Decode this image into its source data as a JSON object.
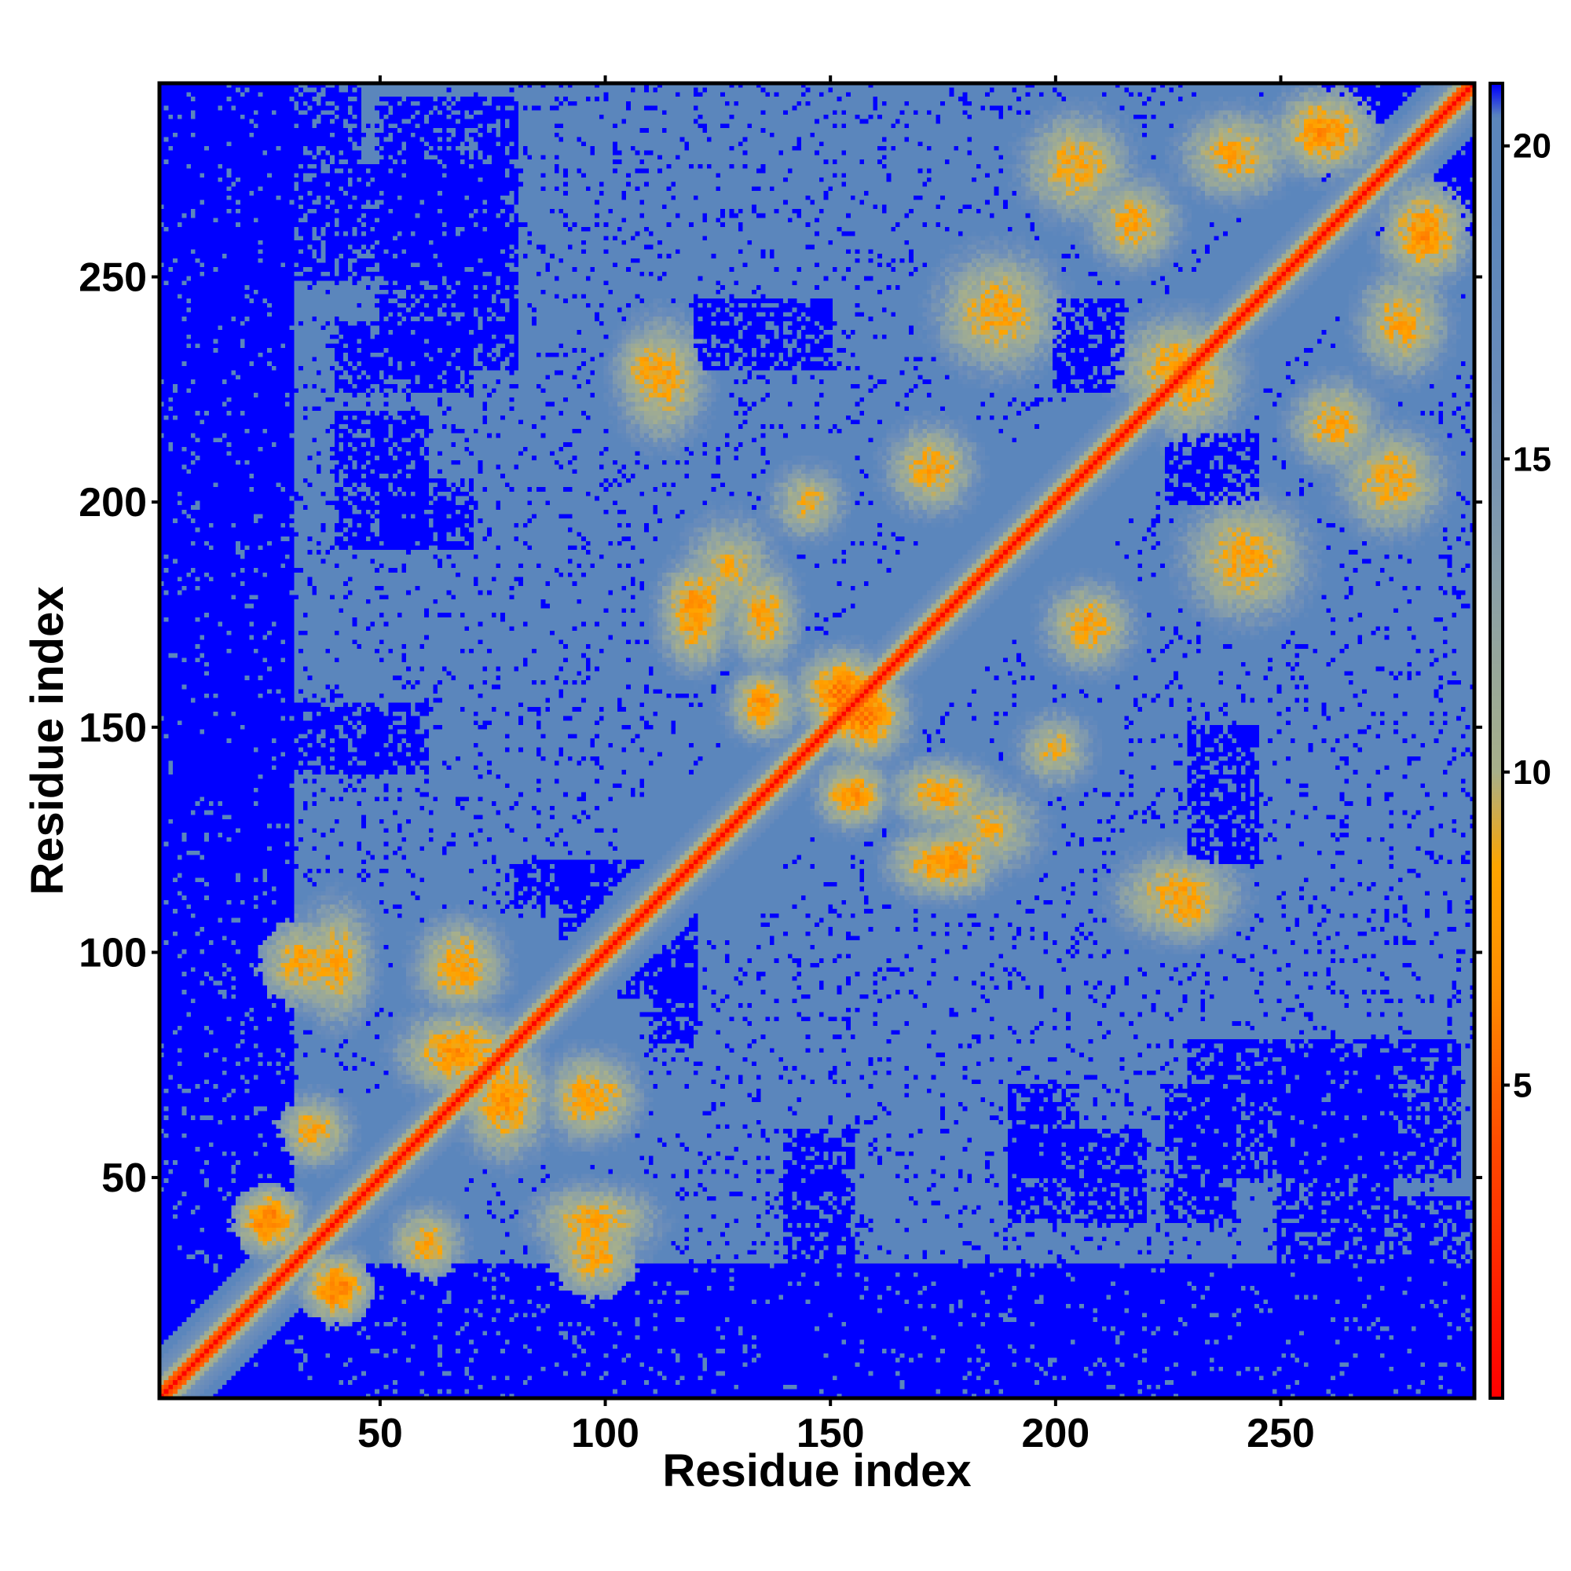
{
  "chart_data": {
    "type": "heatmap",
    "title": "",
    "xlabel": "Residue index",
    "ylabel": "Residue index",
    "n_residues": 293,
    "xlim": [
      1,
      293
    ],
    "ylim": [
      1,
      293
    ],
    "x_ticks": [
      "50",
      "100",
      "150",
      "200",
      "250"
    ],
    "y_ticks": [
      "50",
      "100",
      "150",
      "200",
      "250"
    ],
    "tick_values": [
      50,
      100,
      150,
      200,
      250
    ],
    "colorbar": {
      "ticks": [
        "5",
        "10",
        "15",
        "20"
      ],
      "tick_values": [
        5,
        10,
        15,
        20
      ],
      "range": [
        0,
        21
      ],
      "stops": [
        {
          "value": 0,
          "color": "#ff0000"
        },
        {
          "value": 4,
          "color": "#ff4a00"
        },
        {
          "value": 6.5,
          "color": "#ff8c00"
        },
        {
          "value": 8.5,
          "color": "#ffa500"
        },
        {
          "value": 10,
          "color": "#a8b08a"
        },
        {
          "value": 13,
          "color": "#8aa0a8"
        },
        {
          "value": 16,
          "color": "#6a8cba"
        },
        {
          "value": 19,
          "color": "#5b86bc"
        },
        {
          "value": 20.5,
          "color": "#5b86bc"
        },
        {
          "value": 21,
          "color": "#0000ff"
        }
      ]
    },
    "values_description": "pairwise residue distance, symmetric matrix",
    "colors": {
      "near": "#ff0000",
      "contact": "#ffa500",
      "mid": "#5b86bc",
      "far": "#0000ff"
    },
    "diagonal_band": {
      "zero_distance_on_diagonal": true
    },
    "contact_regions": [
      {
        "i": [
          20,
          30
        ],
        "j": [
          35,
          45
        ],
        "value": 6
      },
      {
        "i": [
          30,
          40
        ],
        "j": [
          55,
          65
        ],
        "value": 8
      },
      {
        "i": [
          35,
          45
        ],
        "j": [
          85,
          110
        ],
        "value": 8
      },
      {
        "i": [
          25,
          40
        ],
        "j": [
          90,
          105
        ],
        "value": 8
      },
      {
        "i": [
          55,
          80
        ],
        "j": [
          70,
          85
        ],
        "value": 7
      },
      {
        "i": [
          60,
          75
        ],
        "j": [
          90,
          105
        ],
        "value": 8
      },
      {
        "i": [
          90,
          100
        ],
        "j": [
          30,
          45
        ],
        "value": 9
      },
      {
        "i": [
          90,
          100
        ],
        "j": [
          60,
          75
        ],
        "value": 8
      },
      {
        "i": [
          105,
          120
        ],
        "j": [
          215,
          240
        ],
        "value": 8
      },
      {
        "i": [
          115,
          125
        ],
        "j": [
          165,
          180
        ],
        "value": 8
      },
      {
        "i": [
          120,
          135
        ],
        "j": [
          175,
          195
        ],
        "value": 9
      },
      {
        "i": [
          130,
          140
        ],
        "j": [
          150,
          160
        ],
        "value": 7
      },
      {
        "i": [
          150,
          165
        ],
        "j": [
          145,
          160
        ],
        "value": 6
      },
      {
        "i": [
          165,
          185
        ],
        "j": [
          130,
          140
        ],
        "value": 8
      },
      {
        "i": [
          170,
          185
        ],
        "j": [
          115,
          125
        ],
        "value": 7
      },
      {
        "i": [
          195,
          205
        ],
        "j": [
          140,
          150
        ],
        "value": 9
      },
      {
        "i": [
          200,
          215
        ],
        "j": [
          165,
          180
        ],
        "value": 8
      },
      {
        "i": [
          220,
          240
        ],
        "j": [
          215,
          240
        ],
        "value": 8
      },
      {
        "i": [
          225,
          235
        ],
        "j": [
          105,
          115
        ],
        "value": 8
      },
      {
        "i": [
          230,
          255
        ],
        "j": [
          175,
          200
        ],
        "value": 8
      },
      {
        "i": [
          255,
          270
        ],
        "j": [
          210,
          225
        ],
        "value": 8
      },
      {
        "i": [
          265,
          285
        ],
        "j": [
          195,
          215
        ],
        "value": 8
      },
      {
        "i": [
          270,
          285
        ],
        "j": [
          230,
          250
        ],
        "value": 8
      },
      {
        "i": [
          275,
          290
        ],
        "j": [
          250,
          270
        ],
        "value": 7
      }
    ],
    "far_regions": [
      {
        "i": [
          1,
          30
        ],
        "j": [
          1,
          293
        ],
        "value": 21
      },
      {
        "i": [
          1,
          293
        ],
        "j": [
          1,
          30
        ],
        "value": 21
      },
      {
        "i": [
          40,
          60
        ],
        "j": [
          190,
          220
        ],
        "value": 21
      },
      {
        "i": [
          50,
          80
        ],
        "j": [
          230,
          290
        ],
        "value": 21
      },
      {
        "i": [
          90,
          110
        ],
        "j": [
          100,
          120
        ],
        "value": 21
      },
      {
        "i": [
          110,
          120
        ],
        "j": [
          80,
          95
        ],
        "value": 21
      },
      {
        "i": [
          140,
          155
        ],
        "j": [
          30,
          60
        ],
        "value": 21
      },
      {
        "i": [
          190,
          205
        ],
        "j": [
          50,
          70
        ],
        "value": 21
      },
      {
        "i": [
          200,
          215
        ],
        "j": [
          225,
          245
        ],
        "value": 21
      },
      {
        "i": [
          225,
          240
        ],
        "j": [
          40,
          70
        ],
        "value": 21
      },
      {
        "i": [
          230,
          245
        ],
        "j": [
          120,
          150
        ],
        "value": 21
      },
      {
        "i": [
          250,
          275
        ],
        "j": [
          45,
          75
        ],
        "value": 21
      },
      {
        "i": [
          250,
          293
        ],
        "j": [
          25,
          45
        ],
        "value": 21
      },
      {
        "i": [
          260,
          293
        ],
        "j": [
          260,
          293
        ],
        "value": 21
      }
    ]
  }
}
